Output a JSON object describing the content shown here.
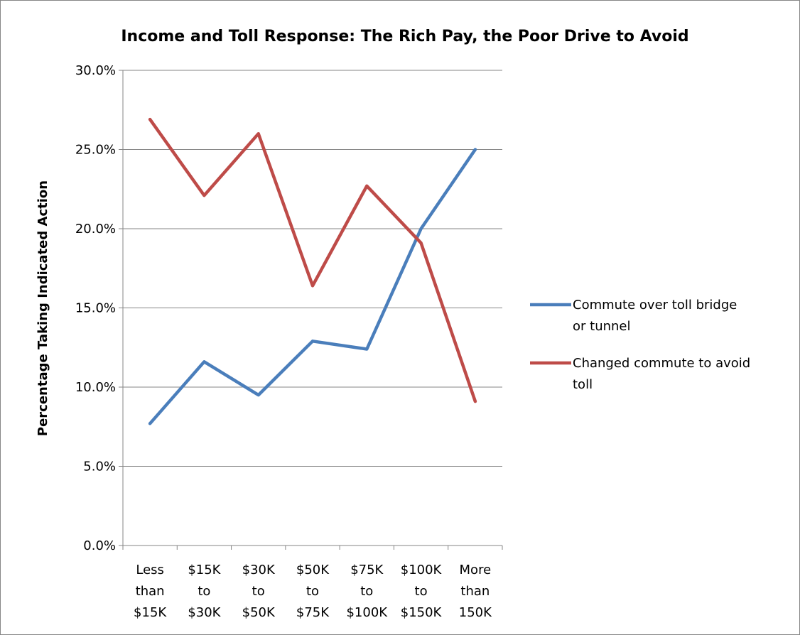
{
  "chart_data": {
    "type": "line",
    "title": "Income and Toll Response: The Rich Pay, the Poor Drive to Avoid",
    "xlabel": "",
    "ylabel": "Percentage Taking Indicated Action",
    "categories": [
      [
        "Less",
        "than",
        "$15K"
      ],
      [
        "$15K",
        "to",
        "$30K"
      ],
      [
        "$30K",
        "to",
        "$50K"
      ],
      [
        "$50K",
        "to",
        "$75K"
      ],
      [
        "$75K",
        "to",
        "$100K"
      ],
      [
        "$100K",
        "to",
        "$150K"
      ],
      [
        "More",
        "than",
        "150K"
      ]
    ],
    "ylim": [
      0,
      30
    ],
    "yticks": [
      0,
      5,
      10,
      15,
      20,
      25,
      30
    ],
    "ytick_labels": [
      "0.0%",
      "5.0%",
      "10.0%",
      "15.0%",
      "20.0%",
      "25.0%",
      "30.0%"
    ],
    "grid": true,
    "legend_position": "right",
    "series": [
      {
        "name": "Commute over toll bridge or tunnel",
        "legend_lines": [
          "Commute over toll bridge",
          "or tunnel"
        ],
        "color": "#4a7ebb",
        "values": [
          7.7,
          11.6,
          9.5,
          12.9,
          12.4,
          20.0,
          25.0
        ]
      },
      {
        "name": "Changed commute to avoid toll",
        "legend_lines": [
          "Changed commute to avoid",
          "toll"
        ],
        "color": "#be4b48",
        "values": [
          26.9,
          22.1,
          26.0,
          16.4,
          22.7,
          19.1,
          9.1
        ]
      }
    ]
  }
}
